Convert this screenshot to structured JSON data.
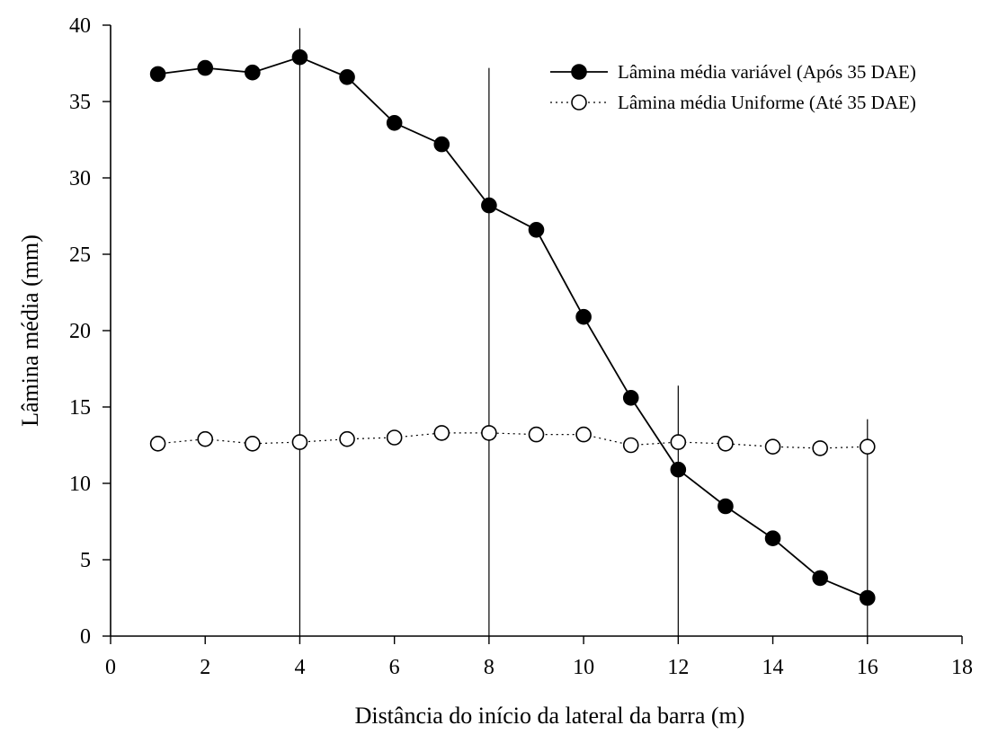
{
  "chart_data": {
    "type": "line",
    "title": "",
    "xlabel": "Distância do início da lateral da barra (m)",
    "ylabel": "Lâmina média (mm)",
    "xlim": [
      0,
      18
    ],
    "ylim": [
      0,
      40
    ],
    "xticks": [
      "0",
      "2",
      "4",
      "6",
      "8",
      "10",
      "12",
      "14",
      "16",
      "18"
    ],
    "yticks": [
      "0",
      "5",
      "10",
      "15",
      "20",
      "25",
      "30",
      "35",
      "40"
    ],
    "grid": false,
    "legend_position": "top-right",
    "x": [
      1,
      2,
      3,
      4,
      5,
      6,
      7,
      8,
      9,
      10,
      11,
      12,
      13,
      14,
      15,
      16
    ],
    "series": [
      {
        "name": "Lâmina média variável (Após 35 DAE)",
        "marker": "filled-circle",
        "line_style": "solid",
        "values": [
          36.8,
          37.2,
          36.9,
          37.9,
          36.6,
          33.6,
          32.2,
          28.2,
          26.6,
          20.9,
          15.6,
          10.9,
          8.5,
          6.4,
          3.8,
          2.5
        ]
      },
      {
        "name": "Lâmina média Uniforme (Até 35 DAE)",
        "marker": "open-circle",
        "line_style": "dotted",
        "values": [
          12.6,
          12.9,
          12.6,
          12.7,
          12.9,
          13.0,
          13.3,
          13.3,
          13.2,
          13.2,
          12.5,
          12.7,
          12.6,
          12.4,
          12.3,
          12.4
        ]
      }
    ],
    "vertical_reference_lines": [
      {
        "x": 4,
        "top": 39.8
      },
      {
        "x": 8,
        "top": 37.2
      },
      {
        "x": 12,
        "top": 16.4
      },
      {
        "x": 16,
        "top": 14.2
      }
    ],
    "colors": {
      "axis": "#000000",
      "marker_fill": "#000000",
      "open_marker_fill": "#ffffff"
    }
  }
}
